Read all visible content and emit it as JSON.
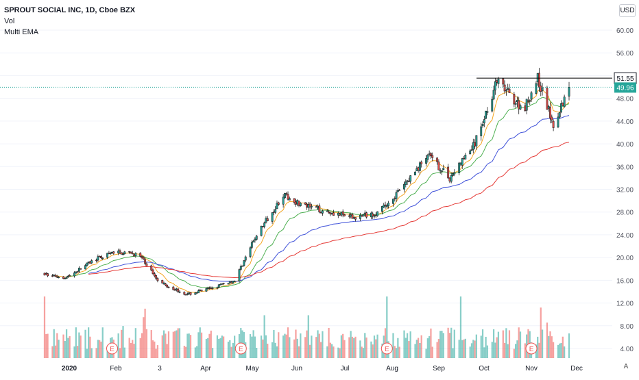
{
  "legend": {
    "title": "SPROUT SOCIAL INC, 1D, Cboe BZX",
    "line2": "Vol",
    "line3": "Multi EMA"
  },
  "currency": "USD",
  "auto_label": "A",
  "price_labels": {
    "resistance": "51.55",
    "last": "49.96"
  },
  "colors": {
    "up": "#26a69a",
    "down": "#ef5350",
    "ema_fast": "#f5a623",
    "ema_mid": "#4caf50",
    "ema_slow": "#3f51d9",
    "ema_long": "#e53935",
    "last_badge": "#26a69a",
    "resistance": "#000000"
  },
  "chart_data": {
    "type": "candlestick",
    "x_ticks": [
      "2020",
      "Feb",
      "3",
      "Apr",
      "May",
      "Jun",
      "Jul",
      "Aug",
      "Sep",
      "Oct",
      "Nov",
      "Dec"
    ],
    "y_ticks": [
      60,
      56,
      52,
      48,
      44,
      40,
      36,
      32,
      28,
      24,
      20,
      16,
      12,
      8,
      4
    ],
    "resistance_level": 51.55,
    "last_price": 49.96,
    "earnings_markers": [
      "Feb",
      "May",
      "Aug",
      "Nov"
    ],
    "earnings_label": "E",
    "price_anchors": [
      [
        "2020-01-01",
        17.0
      ],
      [
        "2020-01-15",
        16.5
      ],
      [
        "2020-02-01",
        19.5
      ],
      [
        "2020-02-15",
        21.0
      ],
      [
        "2020-03-01",
        20.5
      ],
      [
        "2020-03-15",
        15.5
      ],
      [
        "2020-04-01",
        13.5
      ],
      [
        "2020-04-15",
        14.5
      ],
      [
        "2020-05-01",
        16.0
      ],
      [
        "2020-05-15",
        24.0
      ],
      [
        "2020-06-01",
        31.0
      ],
      [
        "2020-06-15",
        29.0
      ],
      [
        "2020-07-01",
        28.0
      ],
      [
        "2020-07-15",
        27.0
      ],
      [
        "2020-08-01",
        28.0
      ],
      [
        "2020-08-15",
        32.0
      ],
      [
        "2020-09-01",
        38.0
      ],
      [
        "2020-09-15",
        34.0
      ],
      [
        "2020-10-01",
        40.0
      ],
      [
        "2020-10-15",
        51.0
      ],
      [
        "2020-11-01",
        46.0
      ],
      [
        "2020-11-10",
        51.5
      ],
      [
        "2020-11-20",
        43.5
      ],
      [
        "2020-11-30",
        49.96
      ]
    ]
  }
}
